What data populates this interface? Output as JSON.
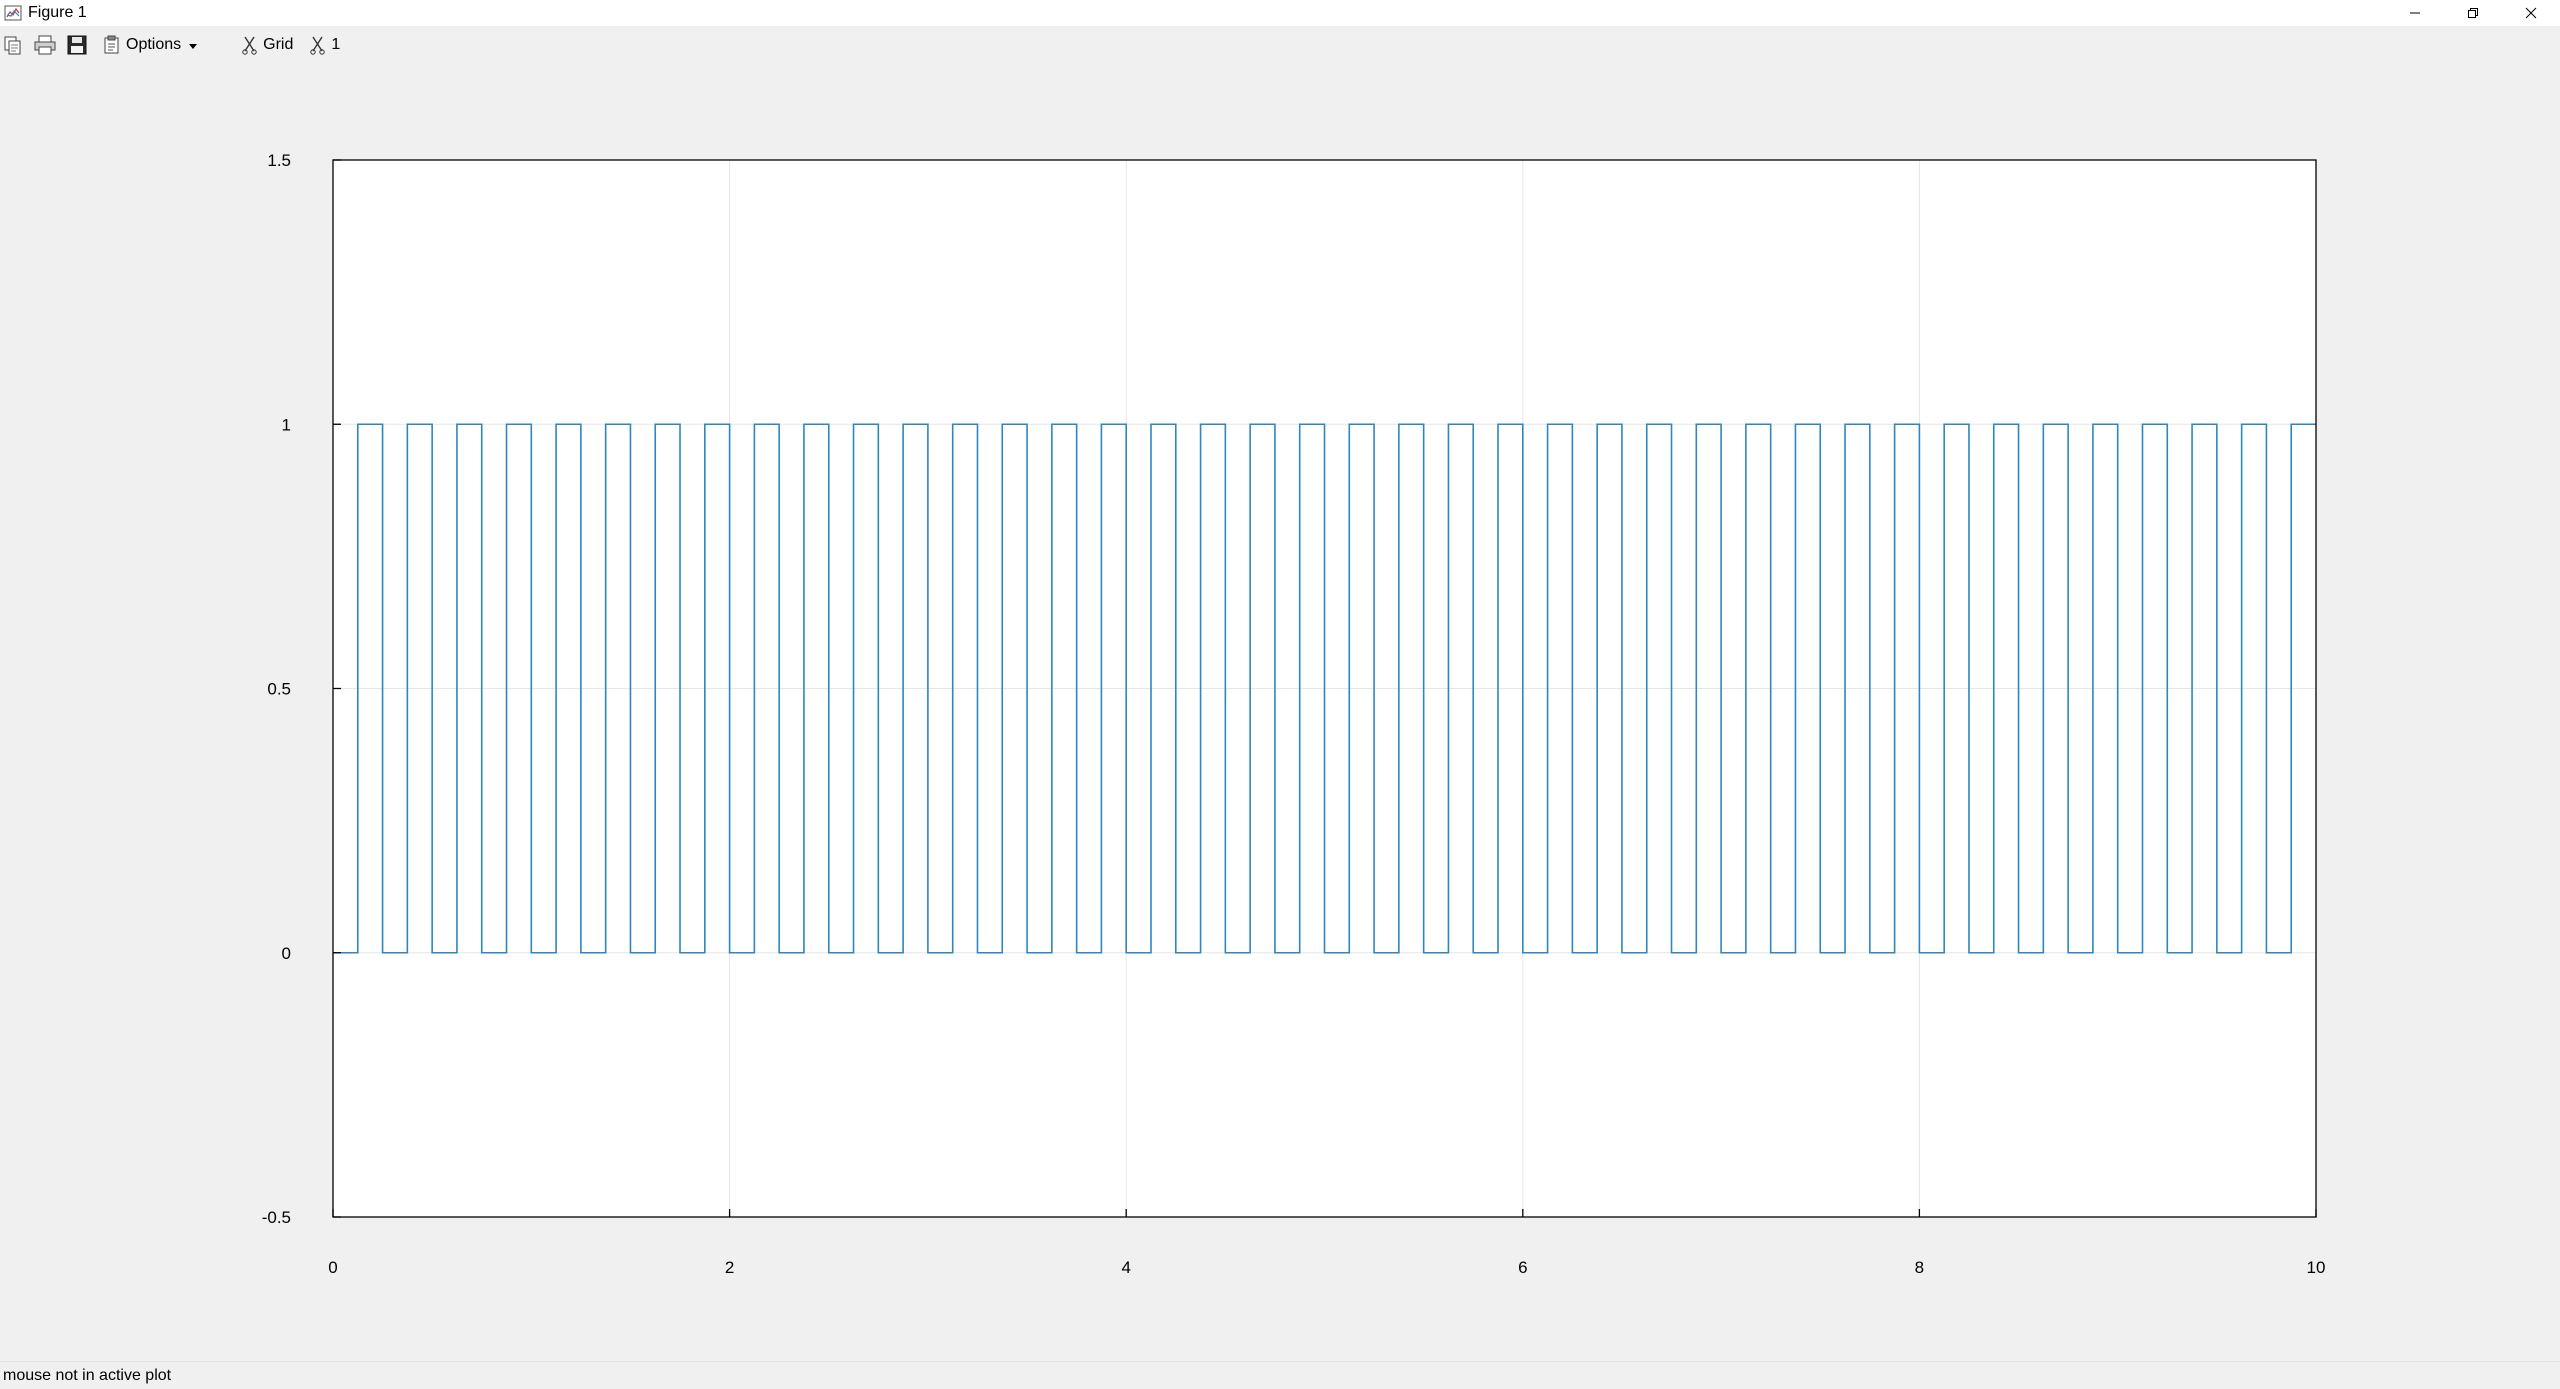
{
  "window": {
    "title": "Figure 1"
  },
  "toolbar": {
    "options_label": "Options",
    "grid_label": "Grid",
    "axis_label": "1"
  },
  "status": {
    "text": "mouse not in active plot"
  },
  "colors": {
    "series": "#2e86c1",
    "grid": "#e6e6e6",
    "axis": "#000000"
  },
  "chart_data": {
    "type": "line",
    "title": "",
    "xlabel": "",
    "ylabel": "",
    "xlim": [
      0,
      10
    ],
    "ylim": [
      -0.5,
      1.5
    ],
    "xticks": [
      "0",
      "2",
      "4",
      "6",
      "8",
      "10"
    ],
    "xtick_values": [
      0,
      2,
      4,
      6,
      8,
      10
    ],
    "yticks": [
      "-0.5",
      "0",
      "0.5",
      "1",
      "1.5"
    ],
    "ytick_values": [
      -0.5,
      0,
      0.5,
      1,
      1.5
    ],
    "grid": true,
    "series": [
      {
        "style": "square-wave",
        "period": 0.25,
        "low": 0,
        "high": 1,
        "initial_low_duration": 0.125,
        "x_range": [
          0,
          10
        ]
      }
    ]
  }
}
